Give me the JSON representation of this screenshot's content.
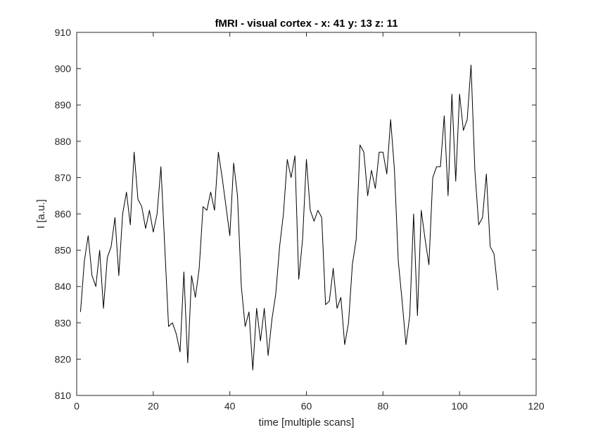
{
  "chart_data": {
    "type": "line",
    "title": "fMRI - visual cortex - x: 41 y: 13 z: 11",
    "xlabel": "time [multiple scans]",
    "ylabel": "I [a.u.]",
    "xlim": [
      0,
      120
    ],
    "ylim": [
      810,
      910
    ],
    "xticks": [
      0,
      20,
      40,
      60,
      80,
      100,
      120
    ],
    "yticks": [
      810,
      820,
      830,
      840,
      850,
      860,
      870,
      880,
      890,
      900,
      910
    ],
    "grid": false,
    "line_color": "#000000",
    "series": [
      {
        "x": [
          1,
          2,
          3,
          4,
          5,
          6,
          7,
          8,
          9,
          10,
          11,
          12,
          13,
          14,
          15,
          16,
          17,
          18,
          19,
          20,
          21,
          22,
          23,
          24,
          25,
          26,
          27,
          28,
          29,
          30,
          31,
          32,
          33,
          34,
          35,
          36,
          37,
          38,
          39,
          40,
          41,
          42,
          43,
          44,
          45,
          46,
          47,
          48,
          49,
          50,
          51,
          52,
          53,
          54,
          55,
          56,
          57,
          58,
          59,
          60,
          61,
          62,
          63,
          64,
          65,
          66,
          67,
          68,
          69,
          70,
          71,
          72,
          73,
          74,
          75,
          76,
          77,
          78,
          79,
          80,
          81,
          82,
          83,
          84,
          85,
          86,
          87,
          88,
          89,
          90,
          91,
          92,
          93,
          94,
          95,
          96,
          97,
          98,
          99,
          100,
          101,
          102,
          103,
          104,
          105,
          106,
          107,
          108,
          109,
          110
        ],
        "values": [
          833,
          847,
          854,
          843,
          840,
          850,
          834,
          848,
          851,
          859,
          843,
          860,
          866,
          857,
          877,
          864,
          862,
          856,
          861,
          855,
          860,
          873,
          851,
          829,
          830,
          827,
          822,
          844,
          819,
          843,
          837,
          845,
          862,
          861,
          866,
          861,
          877,
          870,
          862,
          854,
          874,
          865,
          840,
          829,
          833,
          817,
          834,
          825,
          834,
          821,
          831,
          838,
          851,
          860,
          875,
          870,
          876,
          842,
          853,
          875,
          861,
          858,
          861,
          859,
          835,
          836,
          845,
          834,
          837,
          824,
          830,
          846,
          853,
          879,
          877,
          865,
          872,
          867,
          877,
          877,
          871,
          886,
          872,
          847,
          836,
          824,
          832,
          860,
          832,
          861,
          853,
          846,
          870,
          873,
          873,
          887,
          865,
          893,
          869,
          893,
          883,
          886,
          901,
          872,
          857,
          859,
          871,
          851,
          849,
          839
        ]
      }
    ]
  }
}
